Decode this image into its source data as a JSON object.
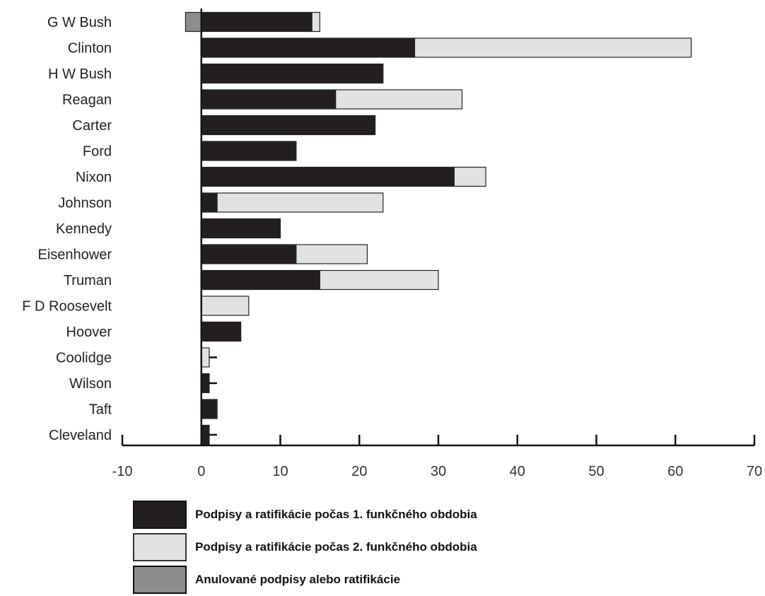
{
  "chart_data": {
    "type": "bar",
    "orientation": "horizontal",
    "stacked": true,
    "categories": [
      "G W Bush",
      "Clinton",
      "H W Bush",
      "Reagan",
      "Carter",
      "Ford",
      "Nixon",
      "Johnson",
      "Kennedy",
      "Eisenhower",
      "Truman",
      "F D Roosevelt",
      "Hoover",
      "Coolidge",
      "Wilson",
      "Taft",
      "Cleveland"
    ],
    "series": [
      {
        "name": "Podpisy a ratifikácie počas 1. funkčného obdobia",
        "color": "#231f20",
        "values": [
          14,
          27,
          23,
          17,
          22,
          12,
          32,
          2,
          10,
          12,
          15,
          0,
          5,
          0,
          1,
          2,
          1
        ]
      },
      {
        "name": "Podpisy a ratifikácie počas 2. funkčného obdobia",
        "color": "#e1e2e3",
        "values": [
          1,
          35,
          0,
          16,
          0,
          0,
          4,
          21,
          0,
          9,
          15,
          6,
          0,
          1,
          0,
          0,
          0
        ]
      },
      {
        "name": "Anulované podpisy alebo ratifikácie",
        "color": "#8c8d8f",
        "values": [
          -2,
          0,
          0,
          0,
          0,
          0,
          0,
          0,
          0,
          0,
          0,
          0,
          0,
          0,
          0,
          0,
          0
        ]
      }
    ],
    "xlim": [
      -10,
      70
    ],
    "xticks": [
      -10,
      0,
      10,
      20,
      30,
      40,
      50,
      60,
      70
    ],
    "grid": false,
    "legend_position": "bottom-left",
    "title": "",
    "xlabel": "",
    "ylabel": ""
  }
}
